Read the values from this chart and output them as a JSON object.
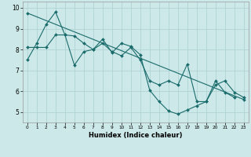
{
  "title": "",
  "xlabel": "Humidex (Indice chaleur)",
  "bg_color": "#cce8e8",
  "line_color": "#1a6b6b",
  "grid_color": "#aacfcf",
  "xlim": [
    -0.5,
    23.5
  ],
  "ylim": [
    4.5,
    10.3
  ],
  "yticks": [
    5,
    6,
    7,
    8,
    9,
    10
  ],
  "xticks": [
    0,
    1,
    2,
    3,
    4,
    5,
    6,
    7,
    8,
    9,
    10,
    11,
    12,
    13,
    14,
    15,
    16,
    17,
    18,
    19,
    20,
    21,
    22,
    23
  ],
  "line1_x": [
    0,
    1,
    2,
    3,
    4,
    5,
    6,
    7,
    8,
    9,
    10,
    11,
    12,
    13,
    14,
    15,
    16,
    17,
    18,
    19,
    20,
    21,
    22
  ],
  "line1_y": [
    7.5,
    8.3,
    9.2,
    9.8,
    8.7,
    7.25,
    7.9,
    8.0,
    8.5,
    7.85,
    8.3,
    8.15,
    7.75,
    6.05,
    5.5,
    5.05,
    4.9,
    5.1,
    5.3,
    5.5,
    6.5,
    5.95,
    5.7
  ],
  "line2_x": [
    0,
    1,
    2,
    3,
    4,
    5,
    6,
    7,
    8,
    9,
    10,
    11,
    12,
    13,
    14,
    15,
    16,
    17,
    18,
    19,
    20,
    21,
    22,
    23
  ],
  "line2_y": [
    8.1,
    8.1,
    8.1,
    8.7,
    8.7,
    8.65,
    8.3,
    8.0,
    8.3,
    7.9,
    7.7,
    8.1,
    7.5,
    6.5,
    6.3,
    6.5,
    6.3,
    7.3,
    5.5,
    5.5,
    6.3,
    6.5,
    5.95,
    5.7
  ],
  "line3_x": [
    0,
    23
  ],
  "line3_y": [
    9.75,
    5.6
  ]
}
